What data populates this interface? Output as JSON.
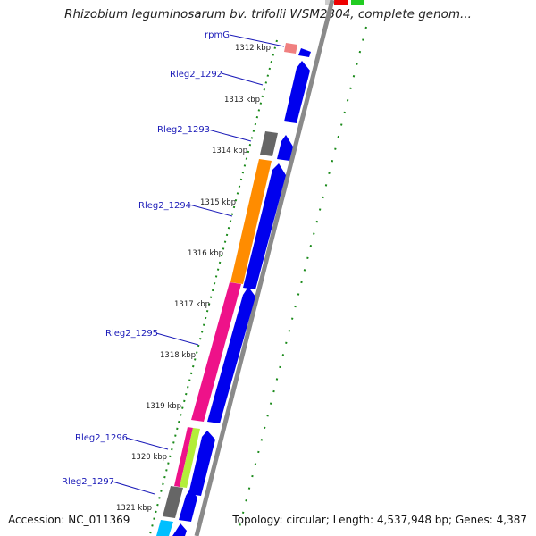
{
  "title": "Rhizobium leguminosarum bv. trifolii WSM2304, complete genom...",
  "accession": "Accession: NC_011369",
  "topology": "Topology: circular; Length: 4,537,948 bp; Genes: 4,387",
  "colors": {
    "backbone": "#8a8a8a",
    "cds_forward": "#0000ee",
    "cog_orange": "#ff8c00",
    "cog_pink": "#ee1289",
    "cog_gray": "#666666",
    "cog_salmon": "#f08080",
    "cog_lime": "#b3ee3a",
    "cog_cyan": "#00bfff",
    "gene_label": "#1a1ab8",
    "gc_dots": "#1a8a1a"
  },
  "kbp_ticks": [
    "1312 kbp",
    "1313 kbp",
    "1314 kbp",
    "1315 kbp",
    "1316 kbp",
    "1317 kbp",
    "1318 kbp",
    "1319 kbp",
    "1320 kbp",
    "1321 kbp"
  ],
  "gene_labels": [
    "rpmG",
    "Rleg2_1292",
    "Rleg2_1293",
    "Rleg2_1294",
    "Rleg2_1295",
    "Rleg2_1296",
    "Rleg2_1297"
  ],
  "features": {
    "top_red": "#ee0000",
    "top_green": "#22cc22"
  }
}
